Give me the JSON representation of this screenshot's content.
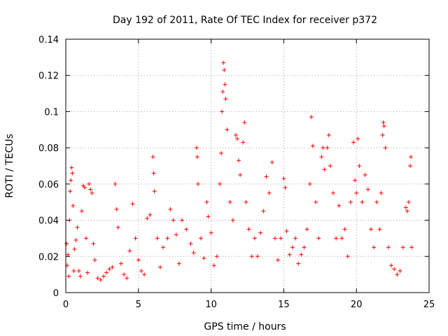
{
  "chart_data": {
    "type": "scatter",
    "title": "Day 192 of 2011, Rate Of TEC Index for receiver p372",
    "xlabel": "GPS time / hours",
    "ylabel": "ROTI / TECUs",
    "xlim": [
      0,
      25
    ],
    "ylim": [
      0,
      0.14
    ],
    "xticks": [
      0,
      5,
      10,
      15,
      20,
      25
    ],
    "yticks": [
      0,
      0.02,
      0.04,
      0.06,
      0.08,
      0.1,
      0.12,
      0.14
    ],
    "xtick_labels": [
      "0",
      "5",
      "10",
      "15",
      "20",
      "25"
    ],
    "ytick_labels": [
      "0",
      "0.02",
      "0.04",
      "0.06",
      "0.08",
      "0.1",
      "0.12",
      "0.14"
    ],
    "grid": true,
    "marker": "+",
    "color": "#ff0000",
    "series": [
      {
        "points": [
          [
            0.05,
            0.027
          ],
          [
            0.1,
            0.015
          ],
          [
            0.15,
            0.021
          ],
          [
            0.2,
            0.009
          ],
          [
            0.25,
            0.04
          ],
          [
            0.3,
            0.056
          ],
          [
            0.35,
            0.062
          ],
          [
            0.4,
            0.069
          ],
          [
            0.45,
            0.066
          ],
          [
            0.5,
            0.048
          ],
          [
            0.55,
            0.012
          ],
          [
            0.6,
            0.024
          ],
          [
            0.7,
            0.029
          ],
          [
            0.8,
            0.036
          ],
          [
            0.9,
            0.012
          ],
          [
            1.0,
            0.009
          ],
          [
            1.1,
            0.045
          ],
          [
            1.2,
            0.059
          ],
          [
            1.3,
            0.058
          ],
          [
            1.4,
            0.03
          ],
          [
            1.5,
            0.011
          ],
          [
            1.6,
            0.06
          ],
          [
            1.7,
            0.057
          ],
          [
            1.8,
            0.055
          ],
          [
            1.9,
            0.027
          ],
          [
            2.0,
            0.018
          ],
          [
            2.2,
            0.008
          ],
          [
            2.4,
            0.007
          ],
          [
            2.6,
            0.009
          ],
          [
            2.8,
            0.011
          ],
          [
            3.0,
            0.013
          ],
          [
            3.2,
            0.014
          ],
          [
            3.4,
            0.06
          ],
          [
            3.5,
            0.046
          ],
          [
            3.6,
            0.036
          ],
          [
            3.8,
            0.016
          ],
          [
            4.0,
            0.01
          ],
          [
            4.2,
            0.008
          ],
          [
            4.4,
            0.023
          ],
          [
            4.6,
            0.049
          ],
          [
            4.8,
            0.03
          ],
          [
            5.0,
            0.018
          ],
          [
            5.2,
            0.012
          ],
          [
            5.4,
            0.01
          ],
          [
            5.6,
            0.041
          ],
          [
            5.8,
            0.043
          ],
          [
            6.0,
            0.075
          ],
          [
            6.05,
            0.066
          ],
          [
            6.1,
            0.056
          ],
          [
            6.3,
            0.03
          ],
          [
            6.5,
            0.014
          ],
          [
            6.7,
            0.025
          ],
          [
            7.0,
            0.03
          ],
          [
            7.2,
            0.046
          ],
          [
            7.4,
            0.04
          ],
          [
            7.6,
            0.032
          ],
          [
            7.8,
            0.016
          ],
          [
            8.0,
            0.04
          ],
          [
            8.3,
            0.035
          ],
          [
            8.6,
            0.027
          ],
          [
            8.8,
            0.022
          ],
          [
            9.0,
            0.08
          ],
          [
            9.05,
            0.075
          ],
          [
            9.1,
            0.06
          ],
          [
            9.3,
            0.03
          ],
          [
            9.5,
            0.019
          ],
          [
            9.7,
            0.05
          ],
          [
            9.8,
            0.042
          ],
          [
            10.0,
            0.033
          ],
          [
            10.2,
            0.015
          ],
          [
            10.4,
            0.02
          ],
          [
            10.6,
            0.06
          ],
          [
            10.7,
            0.077
          ],
          [
            10.75,
            0.1
          ],
          [
            10.8,
            0.111
          ],
          [
            10.85,
            0.127
          ],
          [
            10.9,
            0.123
          ],
          [
            10.95,
            0.115
          ],
          [
            11.0,
            0.107
          ],
          [
            11.1,
            0.09
          ],
          [
            11.3,
            0.05
          ],
          [
            11.5,
            0.04
          ],
          [
            11.7,
            0.087
          ],
          [
            11.8,
            0.085
          ],
          [
            11.9,
            0.073
          ],
          [
            12.0,
            0.065
          ],
          [
            12.2,
            0.083
          ],
          [
            12.3,
            0.094
          ],
          [
            12.4,
            0.05
          ],
          [
            12.6,
            0.035
          ],
          [
            12.8,
            0.02
          ],
          [
            13.0,
            0.03
          ],
          [
            13.2,
            0.02
          ],
          [
            13.4,
            0.033
          ],
          [
            13.6,
            0.045
          ],
          [
            13.8,
            0.064
          ],
          [
            14.0,
            0.055
          ],
          [
            14.2,
            0.072
          ],
          [
            14.4,
            0.03
          ],
          [
            14.6,
            0.018
          ],
          [
            14.8,
            0.03
          ],
          [
            15.0,
            0.063
          ],
          [
            15.1,
            0.058
          ],
          [
            15.2,
            0.034
          ],
          [
            15.4,
            0.021
          ],
          [
            15.6,
            0.025
          ],
          [
            15.8,
            0.03
          ],
          [
            16.0,
            0.016
          ],
          [
            16.2,
            0.021
          ],
          [
            16.4,
            0.025
          ],
          [
            16.6,
            0.035
          ],
          [
            16.8,
            0.06
          ],
          [
            16.9,
            0.097
          ],
          [
            17.0,
            0.081
          ],
          [
            17.2,
            0.05
          ],
          [
            17.4,
            0.03
          ],
          [
            17.6,
            0.075
          ],
          [
            17.7,
            0.08
          ],
          [
            17.8,
            0.068
          ],
          [
            18.0,
            0.08
          ],
          [
            18.1,
            0.087
          ],
          [
            18.2,
            0.07
          ],
          [
            18.4,
            0.055
          ],
          [
            18.6,
            0.03
          ],
          [
            18.8,
            0.048
          ],
          [
            19.0,
            0.03
          ],
          [
            19.2,
            0.035
          ],
          [
            19.4,
            0.02
          ],
          [
            19.6,
            0.05
          ],
          [
            19.8,
            0.083
          ],
          [
            19.9,
            0.062
          ],
          [
            20.0,
            0.055
          ],
          [
            20.1,
            0.085
          ],
          [
            20.2,
            0.07
          ],
          [
            20.4,
            0.05
          ],
          [
            20.6,
            0.065
          ],
          [
            20.8,
            0.057
          ],
          [
            21.0,
            0.035
          ],
          [
            21.2,
            0.025
          ],
          [
            21.4,
            0.05
          ],
          [
            21.6,
            0.035
          ],
          [
            21.7,
            0.055
          ],
          [
            21.8,
            0.087
          ],
          [
            21.85,
            0.094
          ],
          [
            21.9,
            0.092
          ],
          [
            22.0,
            0.08
          ],
          [
            22.2,
            0.025
          ],
          [
            22.4,
            0.015
          ],
          [
            22.6,
            0.013
          ],
          [
            22.8,
            0.01
          ],
          [
            23.0,
            0.012
          ],
          [
            23.2,
            0.025
          ],
          [
            23.4,
            0.047
          ],
          [
            23.5,
            0.045
          ],
          [
            23.6,
            0.05
          ],
          [
            23.7,
            0.07
          ],
          [
            23.75,
            0.075
          ],
          [
            23.8,
            0.025
          ]
        ]
      }
    ]
  }
}
